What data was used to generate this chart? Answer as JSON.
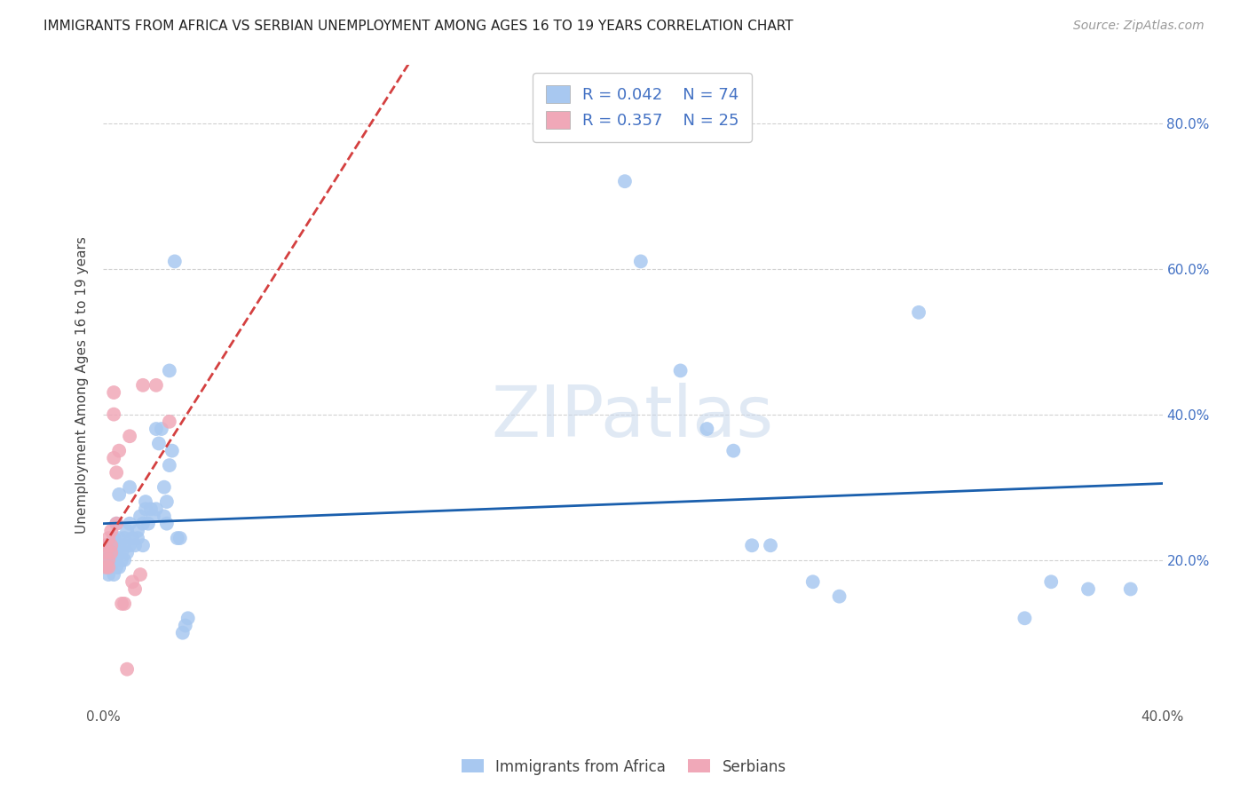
{
  "title": "IMMIGRANTS FROM AFRICA VS SERBIAN UNEMPLOYMENT AMONG AGES 16 TO 19 YEARS CORRELATION CHART",
  "source": "Source: ZipAtlas.com",
  "ylabel": "Unemployment Among Ages 16 to 19 years",
  "legend_label1": "Immigrants from Africa",
  "legend_label2": "Serbians",
  "R1": 0.042,
  "N1": 74,
  "R2": 0.357,
  "N2": 25,
  "color1": "#a8c8f0",
  "color2": "#f0a8b8",
  "trendline1_color": "#1a5fad",
  "trendline2_color": "#d44040",
  "trendline2_linestyle": "--",
  "x_min": 0.0,
  "x_max": 0.4,
  "y_min": 0.0,
  "y_max": 0.88,
  "y_ticks": [
    0.2,
    0.4,
    0.6,
    0.8
  ],
  "y_tick_labels": [
    "20.0%",
    "40.0%",
    "60.0%",
    "80.0%"
  ],
  "x_tick_labels_show": [
    "0.0%",
    "40.0%"
  ],
  "blue_points_x": [
    0.001,
    0.001,
    0.002,
    0.002,
    0.002,
    0.003,
    0.003,
    0.003,
    0.003,
    0.004,
    0.004,
    0.004,
    0.004,
    0.005,
    0.005,
    0.005,
    0.005,
    0.006,
    0.006,
    0.006,
    0.006,
    0.007,
    0.007,
    0.008,
    0.008,
    0.008,
    0.009,
    0.009,
    0.01,
    0.01,
    0.01,
    0.011,
    0.012,
    0.013,
    0.013,
    0.014,
    0.015,
    0.015,
    0.016,
    0.016,
    0.017,
    0.018,
    0.019,
    0.02,
    0.02,
    0.021,
    0.022,
    0.023,
    0.023,
    0.024,
    0.024,
    0.025,
    0.025,
    0.026,
    0.027,
    0.028,
    0.029,
    0.03,
    0.031,
    0.032,
    0.197,
    0.203,
    0.218,
    0.228,
    0.238,
    0.245,
    0.252,
    0.268,
    0.278,
    0.308,
    0.348,
    0.358,
    0.372,
    0.388
  ],
  "blue_points_y": [
    0.2,
    0.22,
    0.19,
    0.21,
    0.18,
    0.2,
    0.22,
    0.21,
    0.19,
    0.23,
    0.22,
    0.2,
    0.18,
    0.21,
    0.19,
    0.25,
    0.2,
    0.22,
    0.19,
    0.29,
    0.23,
    0.21,
    0.2,
    0.22,
    0.23,
    0.2,
    0.24,
    0.21,
    0.22,
    0.3,
    0.25,
    0.23,
    0.22,
    0.24,
    0.23,
    0.26,
    0.25,
    0.22,
    0.28,
    0.27,
    0.25,
    0.27,
    0.26,
    0.38,
    0.27,
    0.36,
    0.38,
    0.26,
    0.3,
    0.25,
    0.28,
    0.33,
    0.46,
    0.35,
    0.61,
    0.23,
    0.23,
    0.1,
    0.11,
    0.12,
    0.72,
    0.61,
    0.46,
    0.38,
    0.35,
    0.22,
    0.22,
    0.17,
    0.15,
    0.54,
    0.12,
    0.17,
    0.16,
    0.16
  ],
  "pink_points_x": [
    0.001,
    0.001,
    0.001,
    0.002,
    0.002,
    0.002,
    0.003,
    0.003,
    0.003,
    0.004,
    0.004,
    0.004,
    0.005,
    0.005,
    0.006,
    0.007,
    0.008,
    0.009,
    0.01,
    0.011,
    0.012,
    0.014,
    0.015,
    0.02,
    0.025
  ],
  "pink_points_y": [
    0.19,
    0.21,
    0.22,
    0.2,
    0.19,
    0.23,
    0.22,
    0.24,
    0.21,
    0.43,
    0.4,
    0.34,
    0.32,
    0.25,
    0.35,
    0.14,
    0.14,
    0.05,
    0.37,
    0.17,
    0.16,
    0.18,
    0.44,
    0.44,
    0.39
  ],
  "watermark": "ZIPatlas",
  "background_color": "#ffffff",
  "grid_color": "#cccccc",
  "title_fontsize": 11,
  "source_fontsize": 10,
  "tick_fontsize": 11,
  "ylabel_fontsize": 11
}
